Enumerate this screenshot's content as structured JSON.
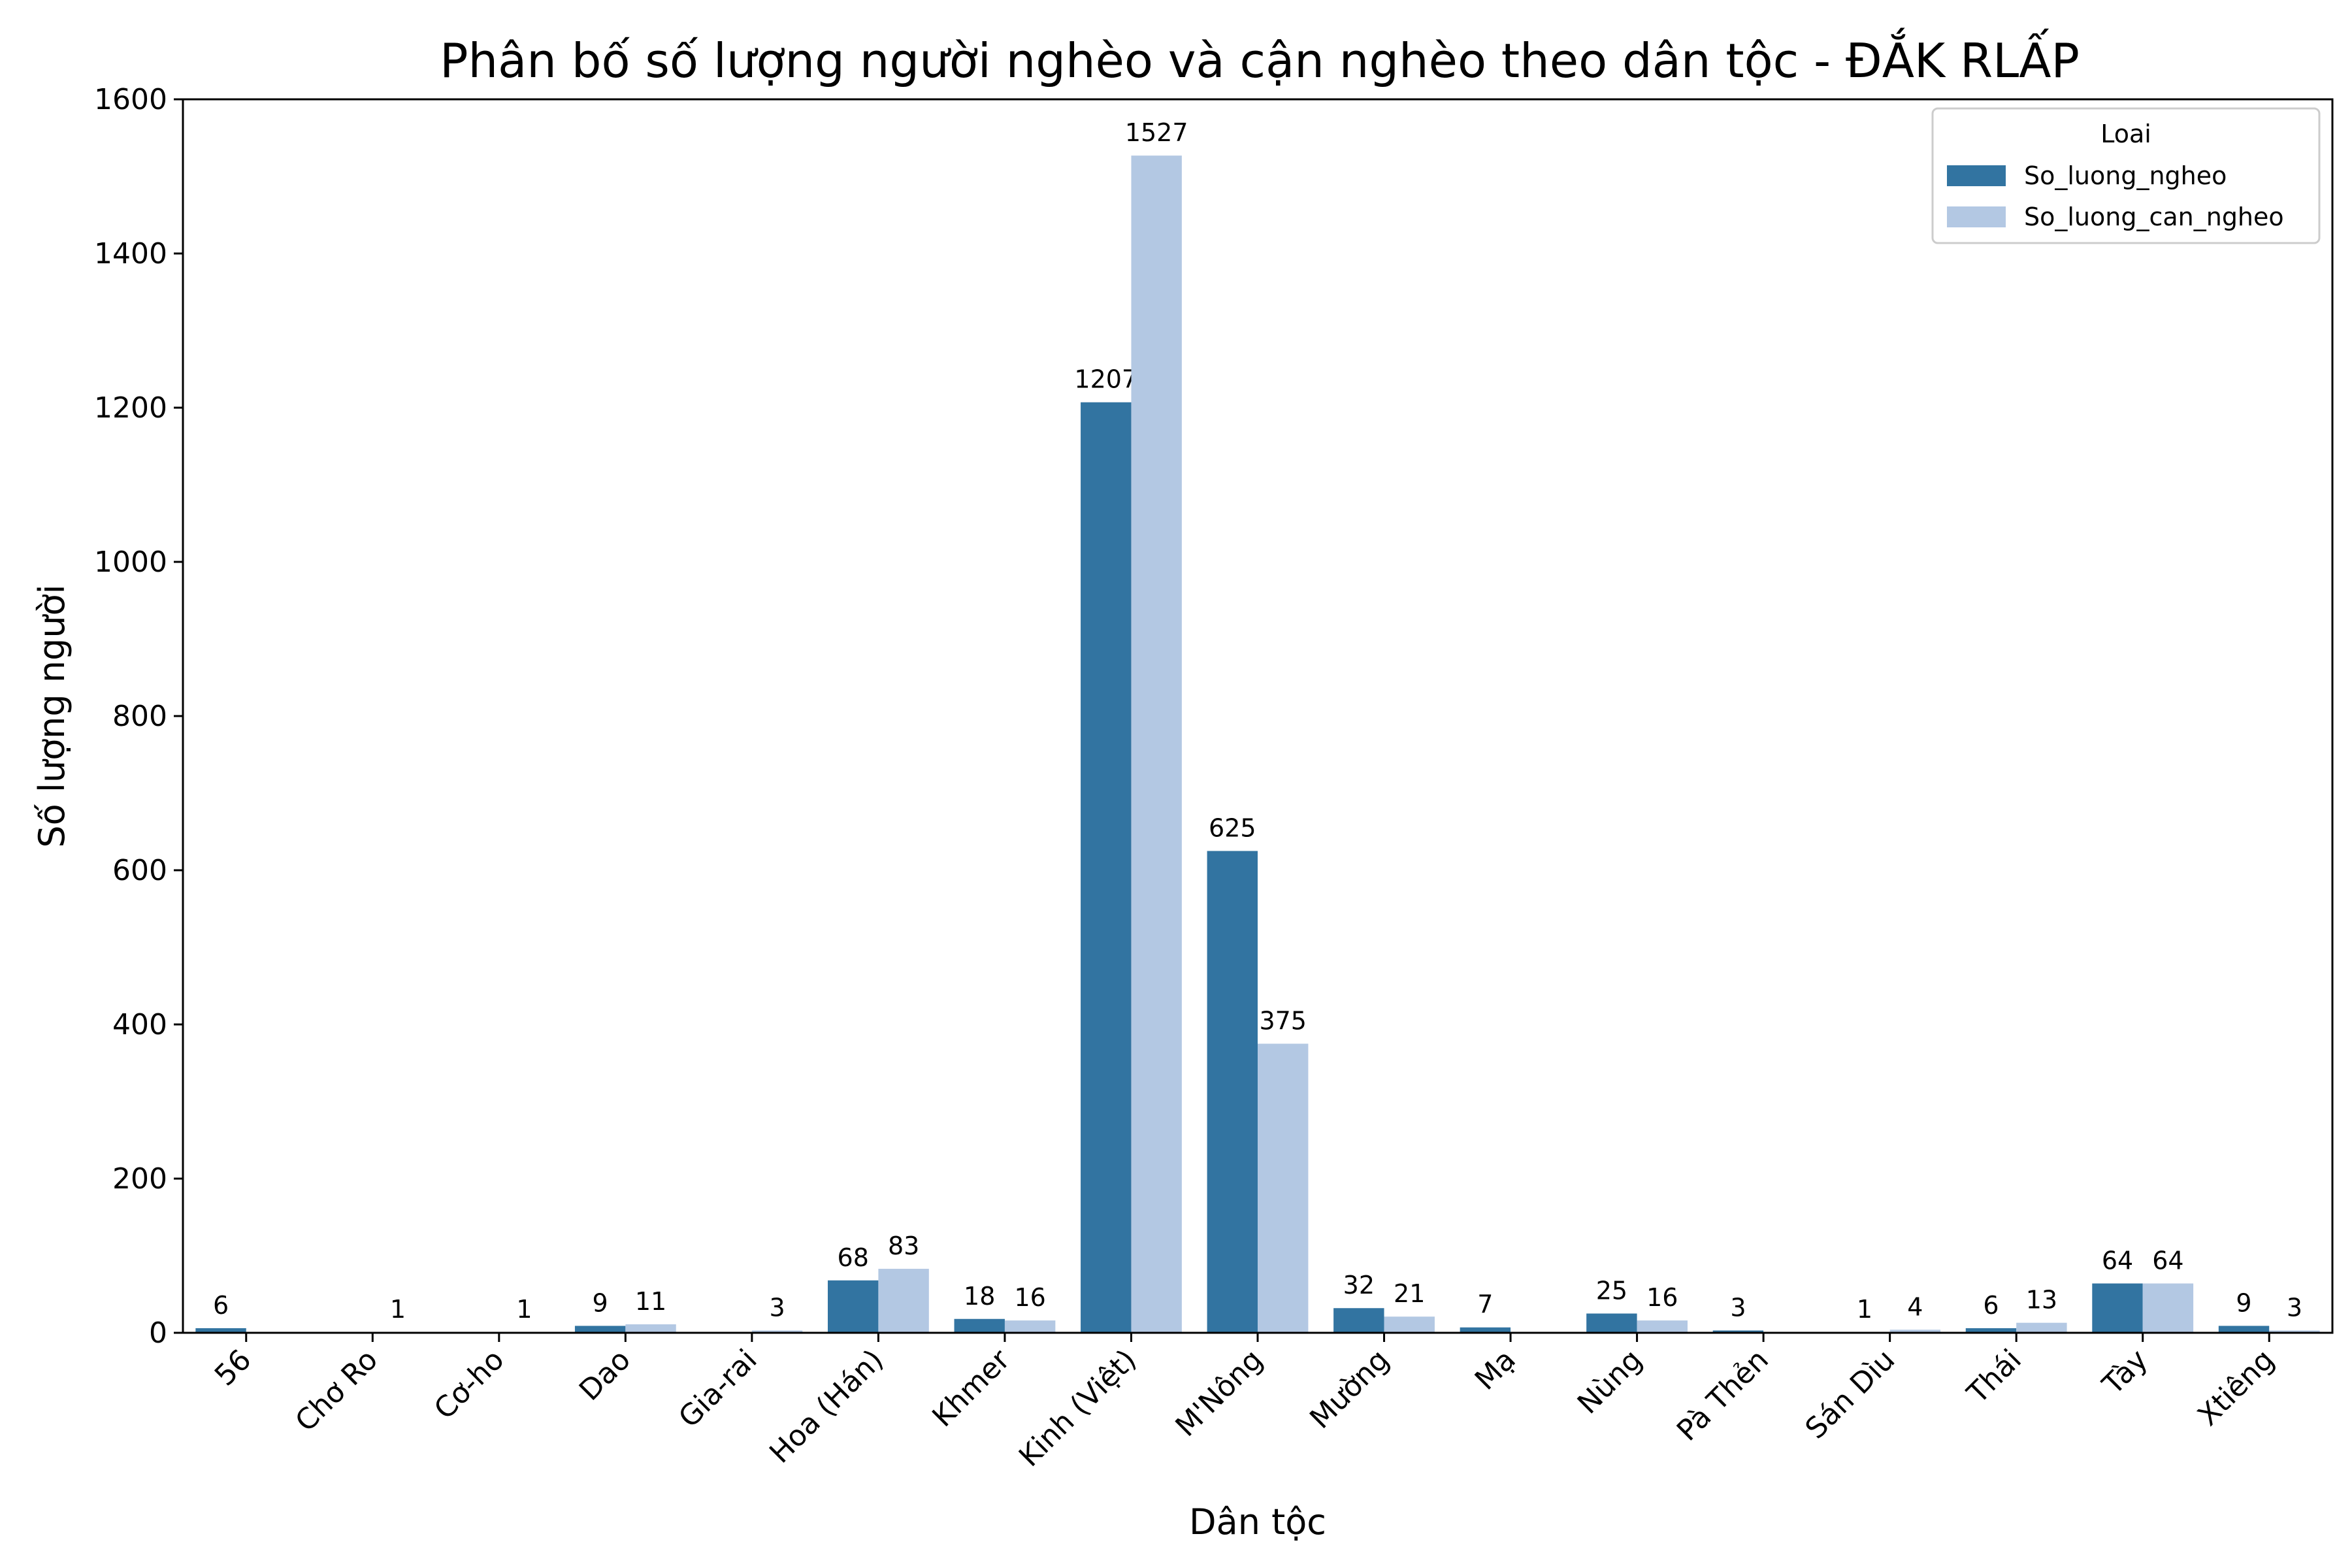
{
  "chart_data": {
    "type": "bar",
    "title": "Phân bố số lượng người nghèo và cận nghèo theo dân tộc - ĐẮK RLẤP",
    "xlabel": "Dân tộc",
    "ylabel": "Số lượng người",
    "ylim": [
      0,
      1600
    ],
    "yticks": [
      0,
      200,
      400,
      600,
      800,
      1000,
      1200,
      1400,
      1600
    ],
    "categories": [
      "56",
      "Chơ Ro",
      "Cơ-ho",
      "Dao",
      "Gia-rai",
      "Hoa (Hán)",
      "Khmer",
      "Kinh (Việt)",
      "M'Nông",
      "Mường",
      "Mạ",
      "Nùng",
      "Pà Thẻn",
      "Sán Dìu",
      "Thái",
      "Tày",
      "Xtiêng"
    ],
    "series": [
      {
        "name": "So_luong_ngheo",
        "color": "#3274a1",
        "values": [
          6,
          null,
          null,
          9,
          null,
          68,
          18,
          1207,
          625,
          32,
          7,
          25,
          3,
          1,
          6,
          64,
          9
        ]
      },
      {
        "name": "So_luong_can_ngheo",
        "color": "#b3c8e3",
        "values": [
          null,
          1,
          1,
          11,
          3,
          83,
          16,
          1527,
          375,
          21,
          null,
          16,
          null,
          4,
          13,
          64,
          3
        ]
      }
    ],
    "legend": {
      "title": "Loai",
      "position": "top-right"
    },
    "grid": false
  }
}
